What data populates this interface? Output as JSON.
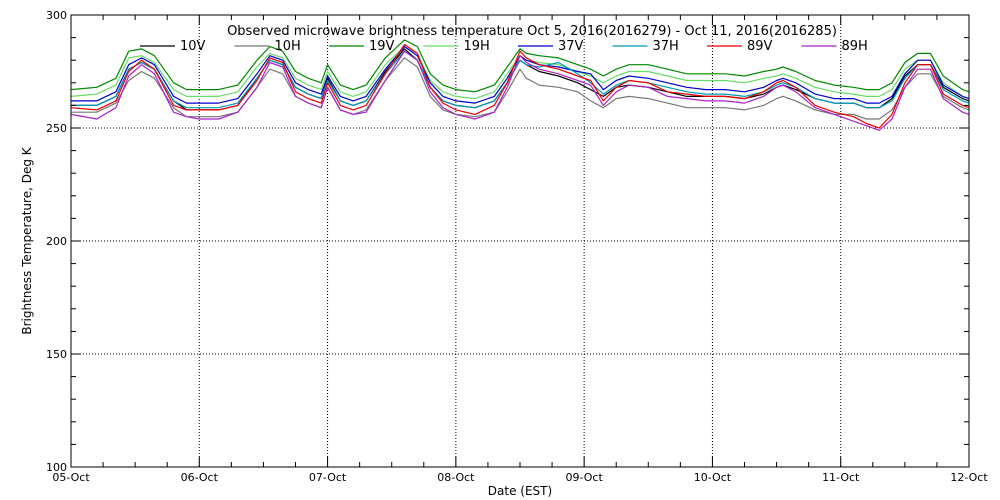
{
  "chart_data": {
    "type": "line",
    "title": "Observed microwave brightness temperature Oct  5, 2016(2016279) - Oct 11, 2016(2016285)",
    "xlabel": "Date (EST)",
    "ylabel": "Brightness Temperature, Deg K",
    "xlim": [
      0,
      7
    ],
    "ylim": [
      100,
      300
    ],
    "x_ticks": [
      0,
      1,
      2,
      3,
      4,
      5,
      6,
      7
    ],
    "x_tick_labels": [
      "05-Oct",
      "06-Oct",
      "07-Oct",
      "08-Oct",
      "09-Oct",
      "10-Oct",
      "11-Oct",
      "12-Oct"
    ],
    "y_ticks": [
      100,
      150,
      200,
      250,
      300
    ],
    "y_tick_labels": [
      "100",
      "150",
      "200",
      "250",
      "300"
    ],
    "grid": true,
    "legend_position": "top",
    "x": [
      0,
      0.2,
      0.35,
      0.45,
      0.55,
      0.65,
      0.8,
      0.9,
      1.0,
      1.15,
      1.3,
      1.45,
      1.55,
      1.65,
      1.75,
      1.85,
      1.95,
      2.0,
      2.1,
      2.2,
      2.3,
      2.45,
      2.6,
      2.7,
      2.8,
      2.9,
      3.0,
      3.15,
      3.3,
      3.4,
      3.5,
      3.55,
      3.65,
      3.8,
      3.95,
      4.05,
      4.15,
      4.25,
      4.35,
      4.5,
      4.65,
      4.8,
      4.95,
      5.1,
      5.25,
      5.4,
      5.5,
      5.55,
      5.65,
      5.8,
      5.95,
      6.1,
      6.2,
      6.3,
      6.4,
      6.5,
      6.6,
      6.7,
      6.8,
      6.95,
      7.0
    ],
    "series": [
      {
        "name": "10V",
        "color": "#000000",
        "values": [
          260,
          260,
          264,
          276,
          279,
          276,
          262,
          258,
          258,
          258,
          260,
          272,
          280,
          278,
          268,
          265,
          263,
          272,
          262,
          260,
          262,
          275,
          285,
          280,
          268,
          262,
          260,
          259,
          262,
          270,
          280,
          278,
          275,
          273,
          270,
          267,
          264,
          268,
          269,
          268,
          266,
          264,
          264,
          264,
          263,
          265,
          268,
          269,
          267,
          263,
          261,
          261,
          259,
          259,
          263,
          273,
          278,
          278,
          268,
          263,
          262
        ]
      },
      {
        "name": "10H",
        "color": "#777777",
        "values": [
          257,
          257,
          261,
          271,
          275,
          272,
          259,
          255,
          255,
          255,
          257,
          268,
          276,
          274,
          264,
          261,
          259,
          268,
          258,
          256,
          258,
          271,
          281,
          277,
          264,
          258,
          256,
          255,
          257,
          266,
          276,
          272,
          269,
          268,
          266,
          262,
          259,
          263,
          264,
          263,
          261,
          259,
          259,
          259,
          258,
          260,
          263,
          264,
          262,
          258,
          256,
          256,
          254,
          254,
          258,
          268,
          274,
          274,
          264,
          259,
          258
        ]
      },
      {
        "name": "19V",
        "color": "#008800",
        "values": [
          267,
          268,
          272,
          284,
          285,
          282,
          270,
          267,
          267,
          267,
          269,
          280,
          286,
          284,
          275,
          272,
          270,
          278,
          269,
          267,
          269,
          281,
          289,
          286,
          274,
          269,
          267,
          266,
          269,
          277,
          285,
          283,
          282,
          281,
          278,
          276,
          273,
          276,
          278,
          278,
          276,
          274,
          274,
          274,
          273,
          275,
          276,
          277,
          275,
          271,
          269,
          268,
          267,
          267,
          270,
          279,
          283,
          283,
          273,
          267,
          266
        ]
      },
      {
        "name": "19H",
        "color": "#66dd66",
        "values": [
          264,
          265,
          269,
          281,
          282,
          279,
          267,
          264,
          264,
          264,
          266,
          277,
          283,
          281,
          272,
          269,
          267,
          275,
          266,
          264,
          266,
          278,
          286,
          283,
          271,
          266,
          264,
          263,
          266,
          274,
          282,
          280,
          279,
          278,
          275,
          273,
          270,
          273,
          275,
          275,
          273,
          271,
          271,
          271,
          270,
          272,
          273,
          274,
          272,
          268,
          266,
          265,
          264,
          264,
          267,
          276,
          280,
          280,
          270,
          264,
          263
        ]
      },
      {
        "name": "37V",
        "color": "#0000cc",
        "values": [
          262,
          262,
          266,
          278,
          281,
          278,
          264,
          261,
          261,
          261,
          263,
          274,
          282,
          280,
          270,
          267,
          265,
          273,
          264,
          262,
          264,
          276,
          286,
          282,
          270,
          264,
          262,
          261,
          264,
          272,
          282,
          280,
          278,
          277,
          275,
          274,
          267,
          271,
          273,
          272,
          270,
          268,
          267,
          267,
          266,
          268,
          271,
          272,
          270,
          265,
          263,
          263,
          261,
          261,
          264,
          274,
          280,
          280,
          269,
          264,
          263
        ]
      },
      {
        "name": "37H",
        "color": "#0099bb",
        "values": [
          260,
          260,
          264,
          276,
          279,
          276,
          262,
          259,
          259,
          259,
          261,
          272,
          280,
          278,
          268,
          265,
          263,
          271,
          262,
          260,
          262,
          274,
          284,
          280,
          268,
          262,
          260,
          259,
          262,
          270,
          280,
          278,
          277,
          279,
          274,
          270,
          265,
          269,
          271,
          270,
          268,
          266,
          265,
          265,
          264,
          266,
          269,
          270,
          268,
          263,
          261,
          261,
          259,
          259,
          262,
          272,
          278,
          278,
          267,
          262,
          261
        ]
      },
      {
        "name": "89V",
        "color": "#ee0000",
        "values": [
          259,
          258,
          262,
          275,
          280,
          276,
          260,
          258,
          258,
          258,
          260,
          271,
          281,
          279,
          266,
          263,
          261,
          270,
          260,
          258,
          260,
          274,
          287,
          283,
          268,
          261,
          258,
          256,
          260,
          270,
          284,
          281,
          278,
          276,
          273,
          271,
          262,
          268,
          271,
          270,
          266,
          265,
          264,
          264,
          263,
          266,
          270,
          271,
          268,
          260,
          257,
          255,
          252,
          250,
          256,
          270,
          278,
          278,
          265,
          260,
          259
        ]
      },
      {
        "name": "89H",
        "color": "#aa22cc",
        "values": [
          256,
          254,
          259,
          273,
          278,
          274,
          257,
          255,
          254,
          254,
          257,
          268,
          279,
          277,
          264,
          261,
          259,
          268,
          258,
          256,
          257,
          271,
          284,
          280,
          266,
          259,
          256,
          254,
          257,
          268,
          282,
          279,
          276,
          274,
          271,
          269,
          260,
          266,
          269,
          268,
          264,
          263,
          262,
          262,
          261,
          264,
          268,
          269,
          266,
          259,
          256,
          253,
          251,
          249,
          254,
          268,
          276,
          276,
          263,
          257,
          256
        ]
      }
    ]
  }
}
